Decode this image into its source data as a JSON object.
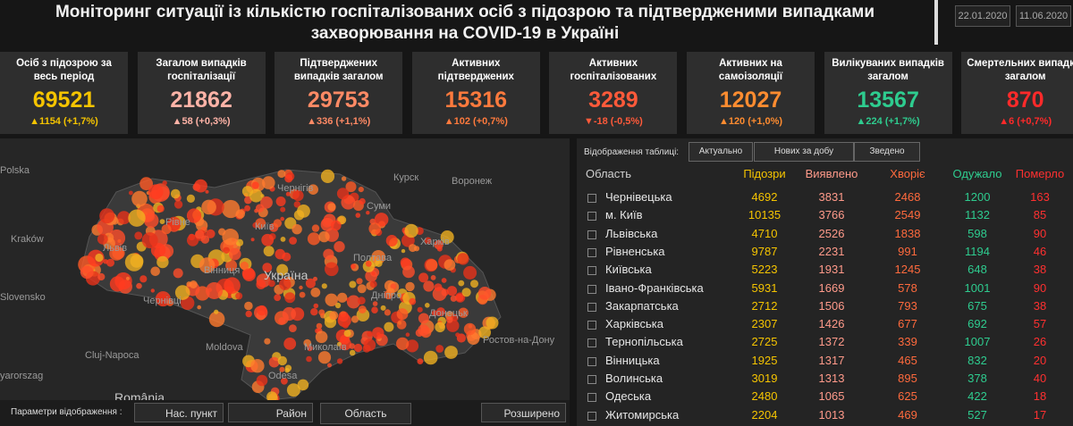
{
  "header": {
    "title": "Моніторинг ситуації із кількістю госпіталізованих осіб з підозрою та підтвердженими випадками захворювання на COVID-19 в Україні",
    "dates": [
      "22.01.2020",
      "11.06.2020"
    ]
  },
  "cards": [
    {
      "label": "Осіб з підозрою за весь період",
      "value": 69521,
      "change": "▲1154 (+1,7%)",
      "color": "#f5c400"
    },
    {
      "label": "Загалом випадків госпіталізації",
      "value": 21862,
      "change": "▲58 (+0,3%)",
      "color": "#ffb3a7"
    },
    {
      "label": "Підтверджених випадків загалом",
      "value": 29753,
      "change": "▲336 (+1,1%)",
      "color": "#ff8a65"
    },
    {
      "label": "Активних підтверджених",
      "value": 15316,
      "change": "▲102 (+0,7%)",
      "color": "#ff7a3d"
    },
    {
      "label": "Активних госпіталізованих",
      "value": 3289,
      "change": "▼-18 (-0,5%)",
      "color": "#ff5a3a"
    },
    {
      "label": "Активних на самоізоляції",
      "value": 12027,
      "change": "▲120 (+1,0%)",
      "color": "#ff8c30"
    },
    {
      "label": "Вилікуваних випадків загалом",
      "value": 13567,
      "change": "▲224 (+1,7%)",
      "color": "#2ecc8f"
    },
    {
      "label": "Смертельних випадків загалом",
      "value": 870,
      "change": "▲6 (+0,7%)",
      "color": "#ff2a2a"
    }
  ],
  "map": {
    "labels": [
      "Polska",
      "Kraków",
      "Slovensko",
      "yarorszag",
      "Cluj-Napoca",
      "Moldova",
      "România",
      "Odesa",
      "Україна",
      "Київ",
      "Рівне",
      "Львів",
      "Вінниця",
      "Чернівці",
      "Чернігів",
      "Суми",
      "Курск",
      "Воронеж",
      "Харків",
      "Полтава",
      "Дніпро",
      "Донецьк",
      "Ростов-на-Дону",
      "Миколаїв"
    ],
    "controls": {
      "label": "Параметри відображення :",
      "buttons": [
        "Нас. пункт",
        "Район",
        "Область",
        "Розширено"
      ]
    }
  },
  "table": {
    "toolbar": {
      "label": "Відображення таблиці:",
      "buttons": [
        "Актуально",
        "Нових за добу",
        "Зведено"
      ]
    },
    "columns": [
      "Область",
      "Підозри",
      "Виявлено",
      "Хворіє",
      "Одужало",
      "Померло"
    ],
    "rows": [
      [
        "Чернівецька",
        4692,
        3831,
        2468,
        1200,
        163
      ],
      [
        "м. Київ",
        10135,
        3766,
        2549,
        1132,
        85
      ],
      [
        "Львівська",
        4710,
        2526,
        1838,
        598,
        90
      ],
      [
        "Рівненська",
        9787,
        2231,
        991,
        1194,
        46
      ],
      [
        "Київська",
        5223,
        1931,
        1245,
        648,
        38
      ],
      [
        "Івано-Франківська",
        5931,
        1669,
        578,
        1001,
        90
      ],
      [
        "Закарпатська",
        2712,
        1506,
        793,
        675,
        38
      ],
      [
        "Харківська",
        2307,
        1426,
        677,
        692,
        57
      ],
      [
        "Тернопільська",
        2725,
        1372,
        339,
        1007,
        26
      ],
      [
        "Вінницька",
        1925,
        1317,
        465,
        832,
        20
      ],
      [
        "Волинська",
        3019,
        1313,
        895,
        378,
        40
      ],
      [
        "Одеська",
        2480,
        1065,
        625,
        422,
        18
      ],
      [
        "Житомирська",
        2204,
        1013,
        469,
        527,
        17
      ]
    ]
  }
}
